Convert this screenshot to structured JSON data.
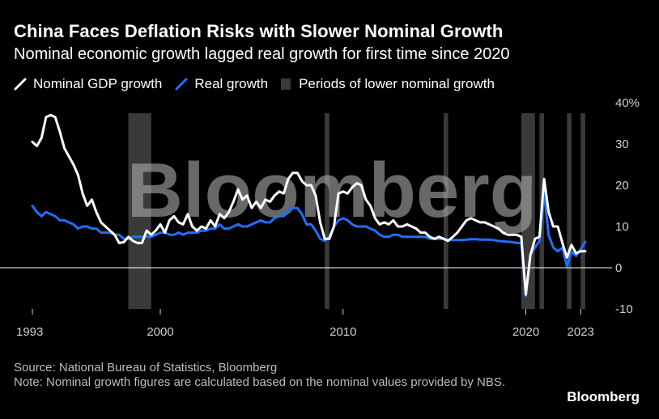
{
  "header": {
    "title": "China Faces Deflation Risks with Slower Nominal Growth",
    "subtitle": "Nominal economic growth lagged real growth for first time since 2020"
  },
  "legend": {
    "nominal": "Nominal GDP growth",
    "real": "Real growth",
    "periods": "Periods of lower nominal growth"
  },
  "footer": {
    "source": "Source: National Bureau of Statistics, Bloomberg",
    "note": "Note: Nominal growth figures are calculated based on the nominal values provided by NBS.",
    "brand": "Bloomberg"
  },
  "watermark": "Bloomberg",
  "colors": {
    "background": "#000000",
    "nominal": "#ffffff",
    "real": "#1f6fff",
    "periods": "#3a3a3a",
    "zero_line": "#ffffff"
  },
  "chart_data": {
    "type": "line",
    "title": "China Faces Deflation Risks with Slower Nominal Growth",
    "subtitle": "Nominal economic growth lagged real growth for first time since 2020",
    "x_ticks": [
      "1993",
      "2000",
      "2010",
      "2020",
      "2023"
    ],
    "y_ticks": [
      "40%",
      "30",
      "20",
      "10",
      "0",
      "-10"
    ],
    "ylim": [
      -10,
      40
    ],
    "xlim": [
      1993,
      2023.3
    ],
    "grid": false,
    "legend_position": "top-left",
    "series": [
      {
        "name": "Nominal GDP growth",
        "x": [
          1993.0,
          1993.25,
          1993.5,
          1993.75,
          1994.0,
          1994.25,
          1994.5,
          1994.75,
          1995.0,
          1995.25,
          1995.5,
          1995.75,
          1996.0,
          1996.25,
          1996.5,
          1996.75,
          1997.0,
          1997.25,
          1997.5,
          1997.75,
          1998.0,
          1998.25,
          1998.5,
          1998.75,
          1999.0,
          1999.25,
          1999.5,
          1999.75,
          2000.0,
          2000.25,
          2000.5,
          2000.75,
          2001.0,
          2001.25,
          2001.5,
          2001.75,
          2002.0,
          2002.25,
          2002.5,
          2002.75,
          2003.0,
          2003.25,
          2003.5,
          2003.75,
          2004.0,
          2004.25,
          2004.5,
          2004.75,
          2005.0,
          2005.25,
          2005.5,
          2005.75,
          2006.0,
          2006.25,
          2006.5,
          2006.75,
          2007.0,
          2007.25,
          2007.5,
          2007.75,
          2008.0,
          2008.25,
          2008.5,
          2008.75,
          2009.0,
          2009.25,
          2009.5,
          2009.75,
          2010.0,
          2010.25,
          2010.5,
          2010.75,
          2011.0,
          2011.25,
          2011.5,
          2011.75,
          2012.0,
          2012.25,
          2012.5,
          2012.75,
          2013.0,
          2013.25,
          2013.5,
          2013.75,
          2014.0,
          2014.25,
          2014.5,
          2014.75,
          2015.0,
          2015.25,
          2015.5,
          2015.75,
          2016.0,
          2016.25,
          2016.5,
          2016.75,
          2017.0,
          2017.25,
          2017.5,
          2017.75,
          2018.0,
          2018.25,
          2018.5,
          2018.75,
          2019.0,
          2019.25,
          2019.5,
          2019.75,
          2020.0,
          2020.25,
          2020.5,
          2020.75,
          2021.0,
          2021.25,
          2021.5,
          2021.75,
          2022.0,
          2022.25,
          2022.5,
          2022.75,
          2023.0,
          2023.25
        ],
        "values": [
          30.5,
          29.5,
          31.5,
          36.5,
          37.0,
          36.5,
          33.0,
          29.0,
          27.0,
          25.0,
          22.5,
          18.0,
          15.0,
          16.5,
          13.5,
          11.0,
          10.0,
          9.0,
          8.0,
          6.0,
          6.2,
          7.5,
          6.5,
          6.0,
          6.0,
          9.0,
          8.0,
          9.0,
          10.5,
          8.5,
          11.5,
          12.5,
          11.0,
          10.5,
          13.0,
          10.0,
          9.0,
          10.0,
          9.5,
          11.5,
          10.0,
          13.0,
          12.0,
          13.5,
          16.0,
          19.0,
          16.5,
          17.5,
          14.5,
          16.0,
          14.5,
          16.5,
          16.0,
          17.5,
          18.5,
          18.0,
          21.5,
          23.0,
          23.0,
          21.0,
          20.0,
          20.0,
          17.5,
          11.0,
          7.0,
          7.0,
          10.0,
          18.0,
          18.5,
          18.0,
          19.5,
          20.5,
          20.0,
          16.5,
          15.0,
          12.0,
          10.5,
          11.0,
          10.5,
          11.5,
          10.0,
          10.0,
          10.5,
          10.0,
          9.5,
          8.5,
          8.5,
          7.5,
          7.0,
          7.5,
          7.0,
          6.5,
          7.5,
          8.5,
          10.0,
          11.5,
          12.0,
          11.5,
          11.0,
          11.0,
          10.5,
          10.0,
          9.5,
          8.5,
          8.0,
          8.0,
          8.0,
          7.5,
          -6.5,
          3.0,
          7.0,
          7.5,
          21.5,
          13.5,
          10.0,
          10.0,
          6.0,
          2.5,
          5.5,
          3.5,
          4.0,
          4.0
        ]
      },
      {
        "name": "Real growth",
        "x": [
          1993.0,
          1993.25,
          1993.5,
          1993.75,
          1994.0,
          1994.25,
          1994.5,
          1994.75,
          1995.0,
          1995.25,
          1995.5,
          1995.75,
          1996.0,
          1996.25,
          1996.5,
          1996.75,
          1997.0,
          1997.25,
          1997.5,
          1997.75,
          1998.0,
          1998.25,
          1998.5,
          1998.75,
          1999.0,
          1999.25,
          1999.5,
          1999.75,
          2000.0,
          2000.25,
          2000.5,
          2000.75,
          2001.0,
          2001.25,
          2001.5,
          2001.75,
          2002.0,
          2002.25,
          2002.5,
          2002.75,
          2003.0,
          2003.25,
          2003.5,
          2003.75,
          2004.0,
          2004.25,
          2004.5,
          2004.75,
          2005.0,
          2005.25,
          2005.5,
          2005.75,
          2006.0,
          2006.25,
          2006.5,
          2006.75,
          2007.0,
          2007.25,
          2007.5,
          2007.75,
          2008.0,
          2008.25,
          2008.5,
          2008.75,
          2009.0,
          2009.25,
          2009.5,
          2009.75,
          2010.0,
          2010.25,
          2010.5,
          2010.75,
          2011.0,
          2011.25,
          2011.5,
          2011.75,
          2012.0,
          2012.25,
          2012.5,
          2012.75,
          2013.0,
          2013.25,
          2013.5,
          2013.75,
          2014.0,
          2014.25,
          2014.5,
          2014.75,
          2015.0,
          2015.25,
          2015.5,
          2015.75,
          2016.0,
          2016.25,
          2016.5,
          2016.75,
          2017.0,
          2017.25,
          2017.5,
          2017.75,
          2018.0,
          2018.25,
          2018.5,
          2018.75,
          2019.0,
          2019.25,
          2019.5,
          2019.75,
          2020.0,
          2020.25,
          2020.5,
          2020.75,
          2021.0,
          2021.25,
          2021.5,
          2021.75,
          2022.0,
          2022.25,
          2022.5,
          2022.75,
          2023.0,
          2023.25
        ],
        "values": [
          15.0,
          13.5,
          12.5,
          13.5,
          13.0,
          12.5,
          11.5,
          11.5,
          11.0,
          10.5,
          9.5,
          10.0,
          10.0,
          9.5,
          9.5,
          8.5,
          8.5,
          8.5,
          8.0,
          8.0,
          7.0,
          7.0,
          7.5,
          7.5,
          7.5,
          7.5,
          7.5,
          8.0,
          8.5,
          8.5,
          8.0,
          8.0,
          8.5,
          8.0,
          8.5,
          8.5,
          8.5,
          9.0,
          9.0,
          9.5,
          9.5,
          10.5,
          9.5,
          9.5,
          10.0,
          10.5,
          10.0,
          10.0,
          10.5,
          11.0,
          11.5,
          11.0,
          11.0,
          12.0,
          12.5,
          12.5,
          14.0,
          14.5,
          14.5,
          13.0,
          10.5,
          10.5,
          9.0,
          7.0,
          6.5,
          7.5,
          10.0,
          11.5,
          12.0,
          11.5,
          10.5,
          10.0,
          10.0,
          10.0,
          9.5,
          9.0,
          8.0,
          7.5,
          7.5,
          8.0,
          8.0,
          7.5,
          7.5,
          7.5,
          7.5,
          7.5,
          7.5,
          7.0,
          7.0,
          7.0,
          7.0,
          6.8,
          6.7,
          6.7,
          6.7,
          6.8,
          6.9,
          6.9,
          6.8,
          6.8,
          6.8,
          6.7,
          6.5,
          6.4,
          6.3,
          6.2,
          6.0,
          6.0,
          -6.8,
          3.2,
          4.9,
          6.5,
          18.3,
          7.9,
          4.9,
          4.0,
          4.8,
          0.4,
          3.9,
          2.9,
          4.5,
          6.3
        ]
      }
    ],
    "shaded_periods": [
      {
        "start": 1998.25,
        "end": 1999.5
      },
      {
        "start": 2009.0,
        "end": 2009.25
      },
      {
        "start": 2015.5,
        "end": 2015.75
      },
      {
        "start": 2019.75,
        "end": 2020.5
      },
      {
        "start": 2020.75,
        "end": 2021.0
      },
      {
        "start": 2022.25,
        "end": 2022.5
      },
      {
        "start": 2023.0,
        "end": 2023.25
      }
    ]
  }
}
